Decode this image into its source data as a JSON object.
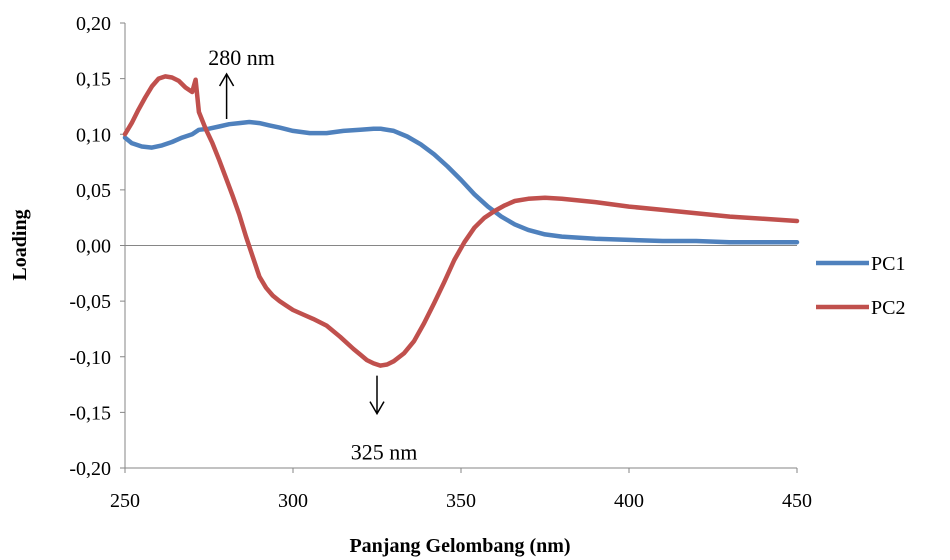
{
  "chart_data": {
    "type": "line",
    "title": "",
    "xlabel": "Panjang Gelombang (nm)",
    "ylabel": "Loading",
    "xlim": [
      250,
      450
    ],
    "ylim": [
      -0.2,
      0.2
    ],
    "xticks": [
      250,
      300,
      350,
      400,
      450
    ],
    "xtick_labels": [
      "250",
      "300",
      "350",
      "400",
      "450"
    ],
    "yticks": [
      0.2,
      0.15,
      0.1,
      0.05,
      0.0,
      -0.05,
      -0.1,
      -0.15,
      -0.2
    ],
    "ytick_labels": [
      "0,20",
      "0,15",
      "0,10",
      "0,05",
      "0,00",
      "-0,05",
      "-0,10",
      "-0,15",
      "-0,20"
    ],
    "grid": false,
    "legend_position": "right",
    "series": [
      {
        "name": "PC1",
        "color": "#4F81BD",
        "x": [
          250,
          252,
          255,
          258,
          261,
          264,
          267,
          270,
          272,
          275,
          278,
          281,
          284,
          287,
          290,
          293,
          296,
          300,
          305,
          310,
          315,
          320,
          324,
          326,
          330,
          334,
          338,
          342,
          346,
          350,
          354,
          358,
          362,
          366,
          370,
          375,
          380,
          390,
          400,
          410,
          420,
          430,
          440,
          450
        ],
        "y": [
          0.097,
          0.092,
          0.089,
          0.088,
          0.09,
          0.093,
          0.097,
          0.1,
          0.104,
          0.105,
          0.107,
          0.109,
          0.11,
          0.111,
          0.11,
          0.108,
          0.106,
          0.103,
          0.101,
          0.101,
          0.103,
          0.104,
          0.105,
          0.105,
          0.103,
          0.098,
          0.091,
          0.082,
          0.071,
          0.059,
          0.046,
          0.035,
          0.026,
          0.019,
          0.014,
          0.01,
          0.008,
          0.006,
          0.005,
          0.004,
          0.004,
          0.003,
          0.003,
          0.003
        ]
      },
      {
        "name": "PC2",
        "color": "#C0504D",
        "x": [
          250,
          252,
          254,
          256,
          258,
          260,
          262,
          264,
          266,
          268,
          270,
          271,
          272,
          274,
          276,
          278,
          280,
          282,
          284,
          286,
          288,
          290,
          292,
          294,
          296,
          298,
          300,
          303,
          306,
          310,
          314,
          318,
          320,
          322,
          324,
          326,
          328,
          330,
          333,
          336,
          339,
          342,
          345,
          348,
          351,
          354,
          357,
          360,
          363,
          366,
          370,
          375,
          380,
          390,
          400,
          410,
          420,
          430,
          440,
          450
        ],
        "y": [
          0.1,
          0.11,
          0.122,
          0.133,
          0.143,
          0.15,
          0.152,
          0.151,
          0.148,
          0.142,
          0.138,
          0.149,
          0.12,
          0.105,
          0.092,
          0.077,
          0.061,
          0.045,
          0.028,
          0.008,
          -0.01,
          -0.028,
          -0.038,
          -0.045,
          -0.05,
          -0.054,
          -0.058,
          -0.062,
          -0.066,
          -0.072,
          -0.082,
          -0.093,
          -0.098,
          -0.103,
          -0.106,
          -0.108,
          -0.107,
          -0.104,
          -0.097,
          -0.086,
          -0.07,
          -0.052,
          -0.033,
          -0.013,
          0.003,
          0.016,
          0.025,
          0.031,
          0.036,
          0.04,
          0.042,
          0.043,
          0.042,
          0.039,
          0.035,
          0.032,
          0.029,
          0.026,
          0.024,
          0.022
        ]
      }
    ],
    "annotations": [
      {
        "text": "280 nm",
        "arrow_direction": "up",
        "x": 285,
        "y": 0.111
      },
      {
        "text": "325 nm",
        "arrow_direction": "down",
        "x": 325,
        "y": -0.108
      }
    ]
  }
}
